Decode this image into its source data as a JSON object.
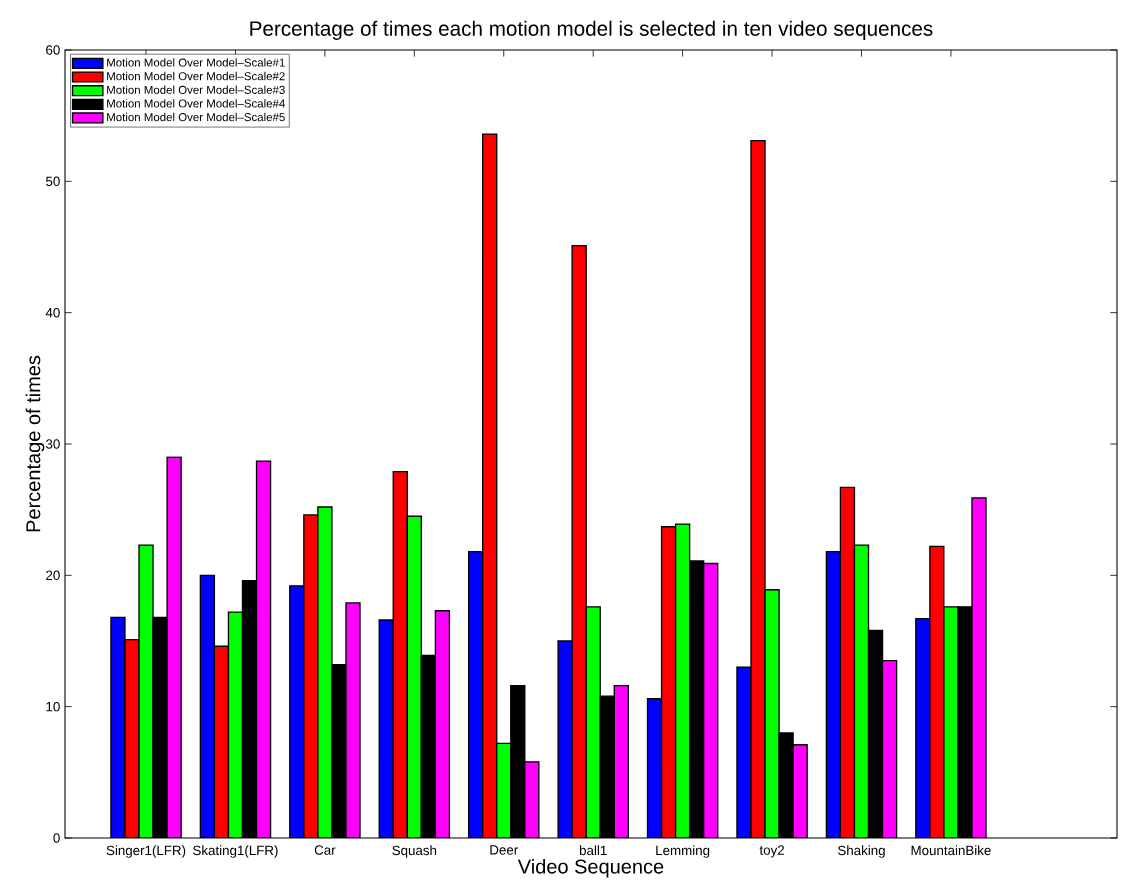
{
  "chart_data": {
    "type": "bar",
    "title": "Percentage of times each motion model is selected in ten video sequences",
    "xlabel": "Video Sequence",
    "ylabel": "Percentage of times",
    "categories": [
      "Singer1(LFR)",
      "Skating1(LFR)",
      "Car",
      "Squash",
      "Deer",
      "ball1",
      "Lemming",
      "toy2",
      "Shaking",
      "MountainBike"
    ],
    "series": [
      {
        "name": "Motion Model Over Model–Scale#1",
        "color": "#0000ff",
        "values": [
          16.8,
          20.0,
          19.2,
          16.6,
          21.8,
          15.0,
          10.6,
          13.0,
          21.8,
          16.7
        ]
      },
      {
        "name": "Motion Model Over Model–Scale#2",
        "color": "#ff0000",
        "values": [
          15.1,
          14.6,
          24.6,
          27.9,
          53.6,
          45.1,
          23.7,
          53.1,
          26.7,
          22.2
        ]
      },
      {
        "name": "Motion Model Over Model–Scale#3",
        "color": "#00ff00",
        "values": [
          22.3,
          17.2,
          25.2,
          24.5,
          7.2,
          17.6,
          23.9,
          18.9,
          22.3,
          17.6
        ]
      },
      {
        "name": "Motion Model Over Model–Scale#4",
        "color": "#000000",
        "values": [
          16.8,
          19.6,
          13.2,
          13.9,
          11.6,
          10.8,
          21.1,
          8.0,
          15.8,
          17.6
        ]
      },
      {
        "name": "Motion Model Over Model–Scale#5",
        "color": "#ff00ff",
        "values": [
          29.0,
          28.7,
          17.9,
          17.3,
          5.8,
          11.6,
          20.9,
          7.1,
          13.5,
          25.9
        ]
      }
    ],
    "ylim": [
      0,
      60
    ],
    "yticks": [
      0,
      10,
      20,
      30,
      40,
      50,
      60
    ],
    "legend": "top left"
  }
}
